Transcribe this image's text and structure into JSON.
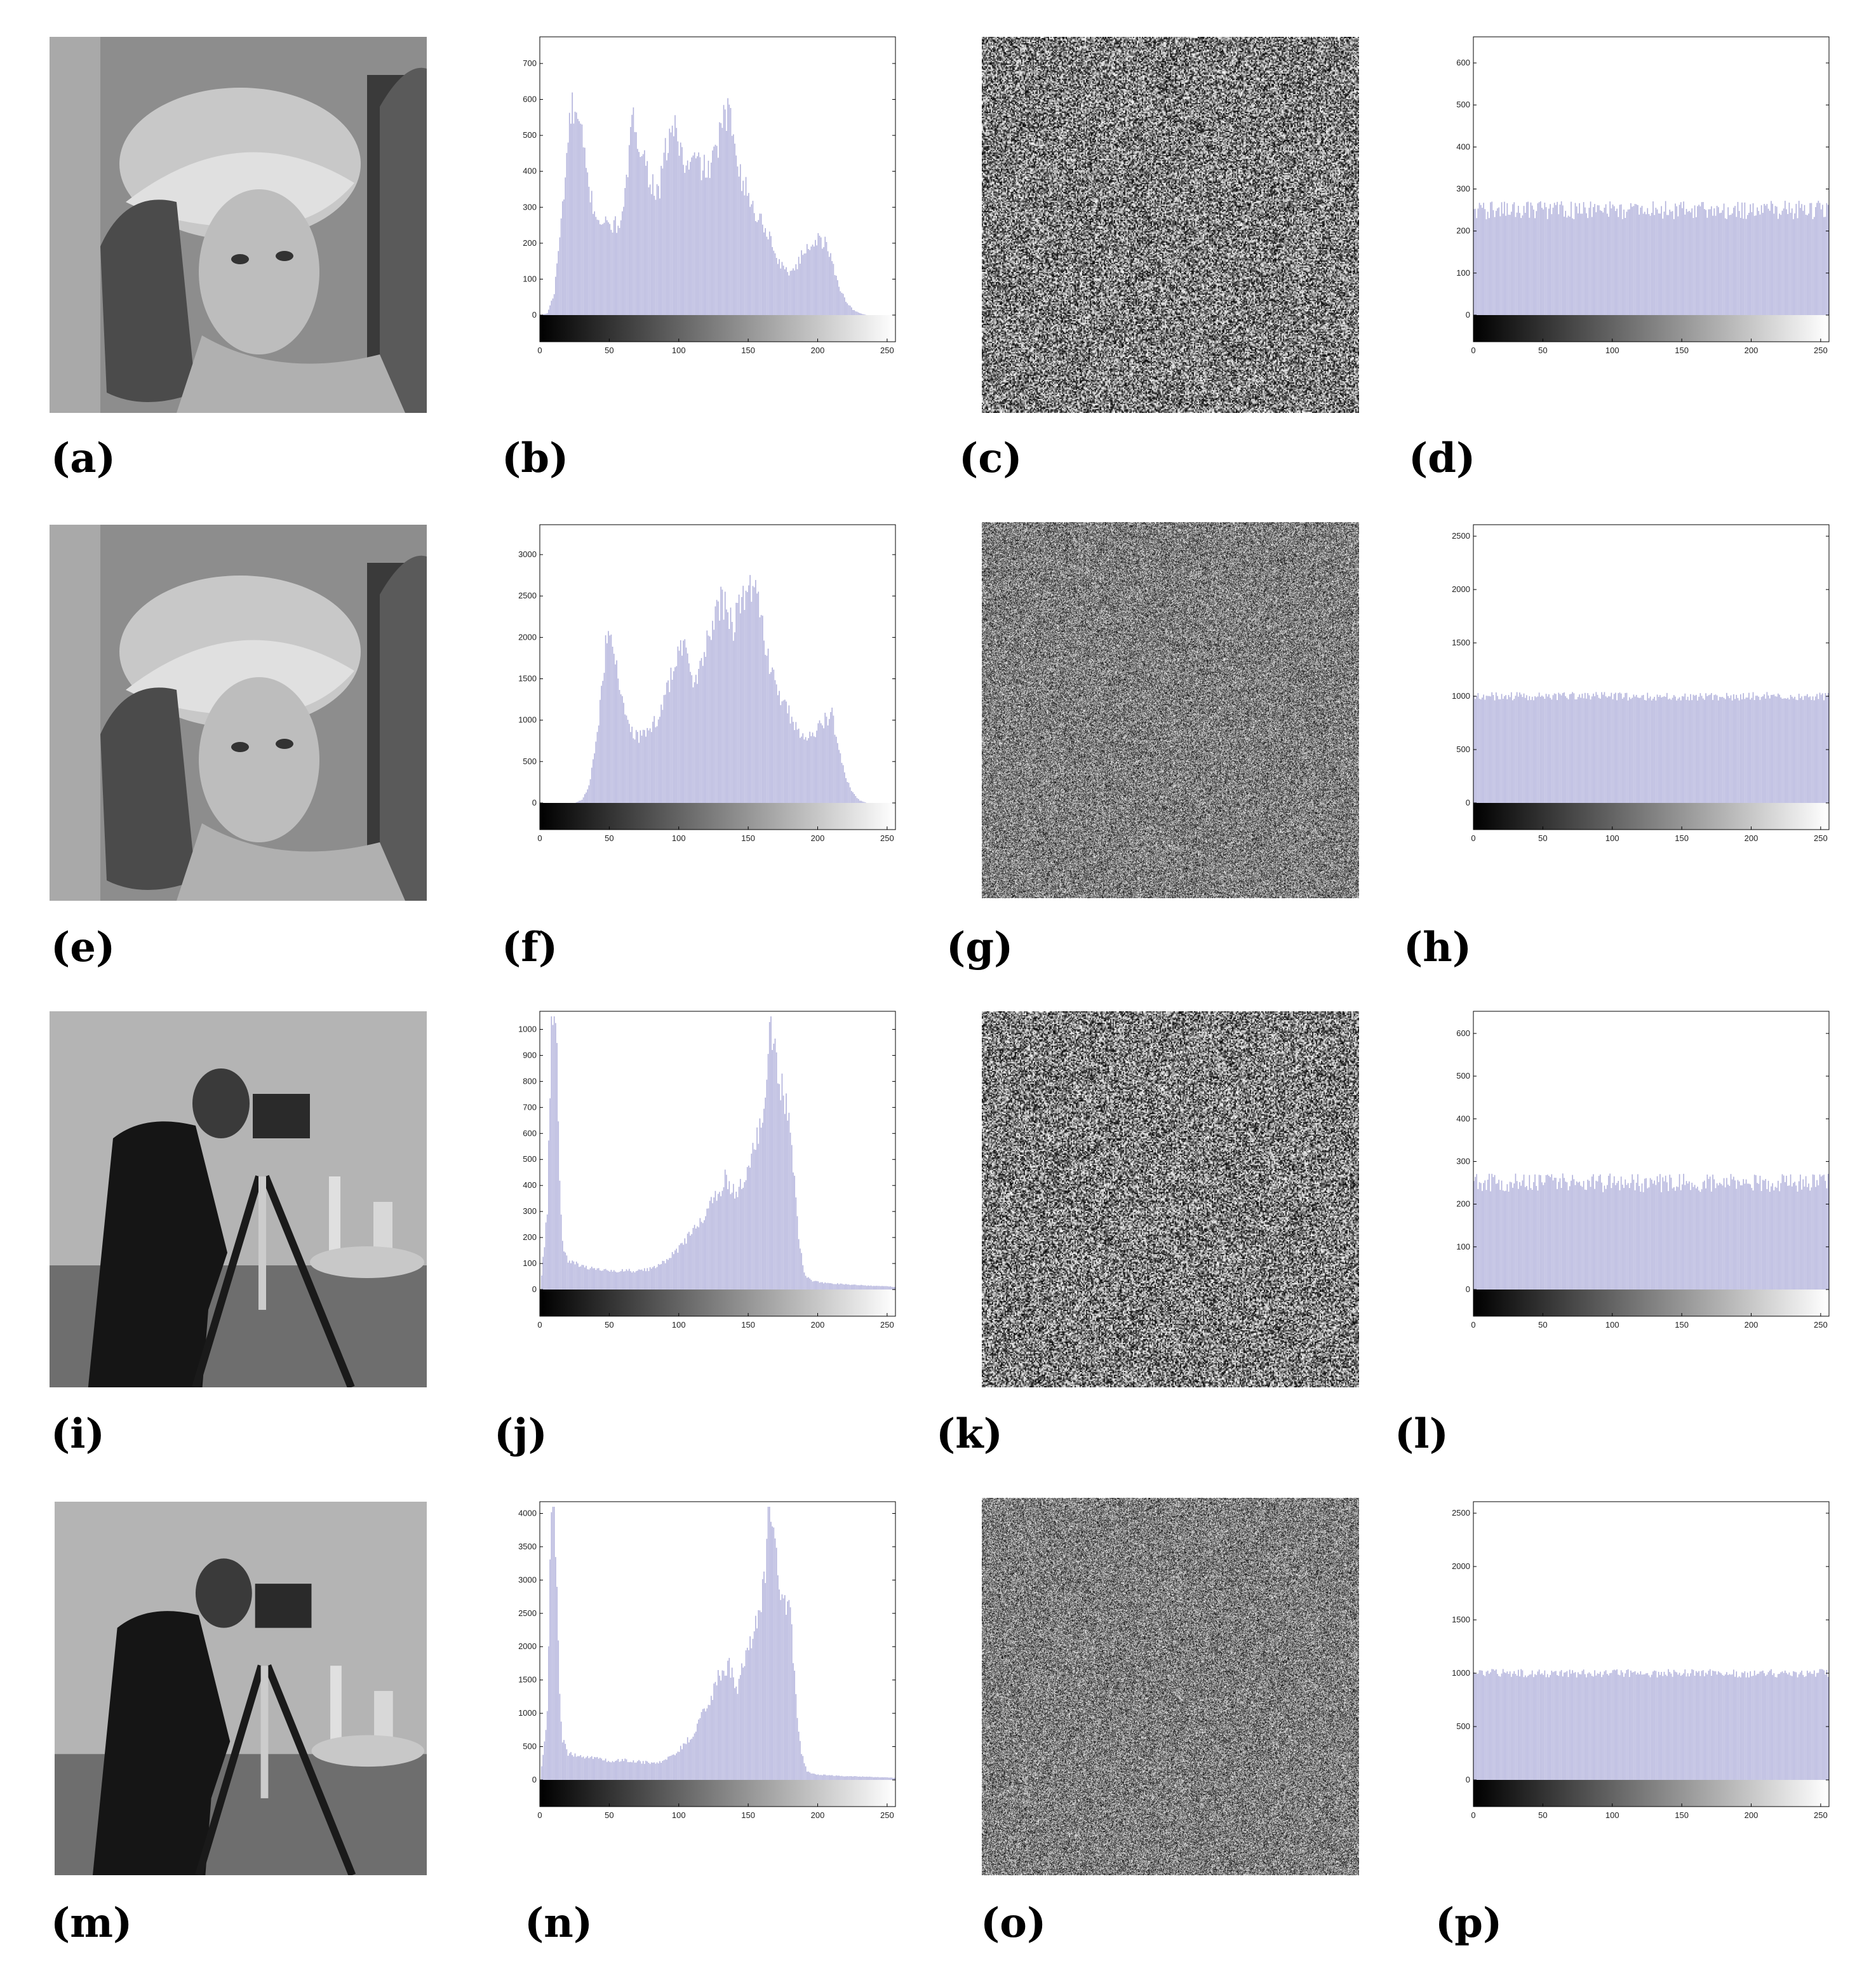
{
  "captions": [
    "(a)",
    "(b)",
    "(c)",
    "(d)",
    "(e)",
    "(f)",
    "(g)",
    "(h)",
    "(i)",
    "(j)",
    "(k)",
    "(l)",
    "(m)",
    "(n)",
    "(o)",
    "(p)"
  ],
  "colors": {
    "bar": "#b3b3dc",
    "axis": "#000000",
    "background": "#ffffff"
  },
  "photos": [
    {
      "panel": "a",
      "subject": "woman-with-hat"
    },
    {
      "panel": "e",
      "subject": "woman-with-hat"
    },
    {
      "panel": "i",
      "subject": "cameraman"
    },
    {
      "panel": "m",
      "subject": "cameraman"
    }
  ],
  "noise": [
    {
      "panel": "c",
      "grain": 2
    },
    {
      "panel": "g",
      "grain": 1
    },
    {
      "panel": "k",
      "grain": 2
    },
    {
      "panel": "o",
      "grain": 1
    }
  ],
  "chart_data": [
    {
      "panel": "b",
      "type": "bar",
      "xlim": [
        0,
        255
      ],
      "ylim": [
        0,
        760
      ],
      "xticks": [
        0,
        50,
        100,
        150,
        200,
        250
      ],
      "yticks": [
        0,
        100,
        200,
        300,
        400,
        500,
        600,
        700
      ],
      "profile": [
        [
          0,
          0
        ],
        [
          5,
          5
        ],
        [
          10,
          60
        ],
        [
          15,
          260
        ],
        [
          20,
          480
        ],
        [
          22,
          570
        ],
        [
          25,
          560
        ],
        [
          30,
          490
        ],
        [
          35,
          350
        ],
        [
          40,
          280
        ],
        [
          45,
          255
        ],
        [
          50,
          250
        ],
        [
          55,
          250
        ],
        [
          60,
          280
        ],
        [
          65,
          500
        ],
        [
          68,
          540
        ],
        [
          72,
          480
        ],
        [
          78,
          390
        ],
        [
          85,
          330
        ],
        [
          90,
          450
        ],
        [
          95,
          530
        ],
        [
          100,
          480
        ],
        [
          105,
          400
        ],
        [
          110,
          430
        ],
        [
          115,
          420
        ],
        [
          120,
          400
        ],
        [
          125,
          430
        ],
        [
          130,
          520
        ],
        [
          135,
          560
        ],
        [
          140,
          500
        ],
        [
          145,
          380
        ],
        [
          150,
          330
        ],
        [
          155,
          280
        ],
        [
          160,
          260
        ],
        [
          165,
          220
        ],
        [
          170,
          160
        ],
        [
          175,
          130
        ],
        [
          180,
          120
        ],
        [
          185,
          140
        ],
        [
          190,
          180
        ],
        [
          195,
          200
        ],
        [
          200,
          210
        ],
        [
          205,
          200
        ],
        [
          210,
          150
        ],
        [
          215,
          80
        ],
        [
          220,
          40
        ],
        [
          225,
          15
        ],
        [
          230,
          5
        ],
        [
          235,
          0
        ],
        [
          255,
          0
        ]
      ]
    },
    {
      "panel": "d",
      "type": "bar",
      "xlim": [
        0,
        255
      ],
      "ylim": [
        0,
        650
      ],
      "xticks": [
        0,
        50,
        100,
        150,
        200,
        250
      ],
      "yticks": [
        0,
        100,
        200,
        300,
        400,
        500,
        600
      ],
      "profile": [
        [
          0,
          250
        ],
        [
          255,
          250
        ]
      ],
      "jitter": 22
    },
    {
      "panel": "f",
      "type": "bar",
      "xlim": [
        0,
        255
      ],
      "ylim": [
        0,
        3300
      ],
      "xticks": [
        0,
        50,
        100,
        150,
        200,
        250
      ],
      "yticks": [
        0,
        500,
        1000,
        1500,
        2000,
        2500,
        3000
      ],
      "profile": [
        [
          0,
          0
        ],
        [
          25,
          0
        ],
        [
          30,
          40
        ],
        [
          35,
          200
        ],
        [
          40,
          700
        ],
        [
          45,
          1500
        ],
        [
          48,
          2050
        ],
        [
          52,
          2000
        ],
        [
          56,
          1600
        ],
        [
          60,
          1100
        ],
        [
          65,
          850
        ],
        [
          70,
          800
        ],
        [
          75,
          820
        ],
        [
          80,
          900
        ],
        [
          85,
          1050
        ],
        [
          90,
          1300
        ],
        [
          95,
          1600
        ],
        [
          100,
          1850
        ],
        [
          102,
          1900
        ],
        [
          106,
          1700
        ],
        [
          110,
          1500
        ],
        [
          115,
          1650
        ],
        [
          120,
          1900
        ],
        [
          125,
          2200
        ],
        [
          130,
          2450
        ],
        [
          134,
          2350
        ],
        [
          138,
          2100
        ],
        [
          142,
          2300
        ],
        [
          146,
          2450
        ],
        [
          150,
          2600
        ],
        [
          153,
          2720
        ],
        [
          156,
          2500
        ],
        [
          160,
          2100
        ],
        [
          165,
          1700
        ],
        [
          170,
          1400
        ],
        [
          175,
          1200
        ],
        [
          180,
          1050
        ],
        [
          185,
          900
        ],
        [
          190,
          750
        ],
        [
          195,
          800
        ],
        [
          200,
          900
        ],
        [
          205,
          1000
        ],
        [
          210,
          1050
        ],
        [
          212,
          900
        ],
        [
          216,
          600
        ],
        [
          220,
          300
        ],
        [
          225,
          120
        ],
        [
          230,
          30
        ],
        [
          235,
          0
        ],
        [
          255,
          0
        ]
      ]
    },
    {
      "panel": "h",
      "type": "bar",
      "xlim": [
        0,
        255
      ],
      "ylim": [
        0,
        2560
      ],
      "xticks": [
        0,
        50,
        100,
        150,
        200,
        250
      ],
      "yticks": [
        0,
        500,
        1000,
        1500,
        2000,
        2500
      ],
      "profile": [
        [
          0,
          1000
        ],
        [
          255,
          1000
        ]
      ],
      "jitter": 40
    },
    {
      "panel": "j",
      "type": "bar",
      "xlim": [
        0,
        255
      ],
      "ylim": [
        0,
        1050
      ],
      "xticks": [
        0,
        50,
        100,
        150,
        200,
        250
      ],
      "yticks": [
        0,
        100,
        200,
        300,
        400,
        500,
        600,
        700,
        800,
        900,
        1000
      ],
      "profile": [
        [
          0,
          0
        ],
        [
          5,
          300
        ],
        [
          8,
          1050
        ],
        [
          10,
          1050
        ],
        [
          12,
          900
        ],
        [
          14,
          400
        ],
        [
          16,
          180
        ],
        [
          20,
          110
        ],
        [
          30,
          90
        ],
        [
          40,
          80
        ],
        [
          50,
          70
        ],
        [
          60,
          75
        ],
        [
          70,
          70
        ],
        [
          80,
          80
        ],
        [
          90,
          110
        ],
        [
          100,
          160
        ],
        [
          110,
          230
        ],
        [
          120,
          300
        ],
        [
          128,
          380
        ],
        [
          133,
          420
        ],
        [
          138,
          400
        ],
        [
          142,
          360
        ],
        [
          146,
          420
        ],
        [
          150,
          480
        ],
        [
          155,
          560
        ],
        [
          158,
          600
        ],
        [
          162,
          700
        ],
        [
          165,
          1050
        ],
        [
          168,
          1000
        ],
        [
          171,
          800
        ],
        [
          173,
          780
        ],
        [
          176,
          720
        ],
        [
          180,
          600
        ],
        [
          183,
          400
        ],
        [
          186,
          200
        ],
        [
          190,
          60
        ],
        [
          195,
          35
        ],
        [
          205,
          25
        ],
        [
          220,
          20
        ],
        [
          235,
          15
        ],
        [
          250,
          12
        ],
        [
          255,
          10
        ]
      ]
    },
    {
      "panel": "l",
      "type": "bar",
      "xlim": [
        0,
        255
      ],
      "ylim": [
        0,
        640
      ],
      "xticks": [
        0,
        50,
        100,
        150,
        200,
        250
      ],
      "yticks": [
        0,
        100,
        200,
        300,
        400,
        500,
        600
      ],
      "profile": [
        [
          0,
          250
        ],
        [
          255,
          250
        ]
      ],
      "jitter": 22
    },
    {
      "panel": "n",
      "type": "bar",
      "xlim": [
        0,
        255
      ],
      "ylim": [
        0,
        4100
      ],
      "xticks": [
        0,
        50,
        100,
        150,
        200,
        250
      ],
      "yticks": [
        0,
        500,
        1000,
        1500,
        2000,
        2500,
        3000,
        3500,
        4000
      ],
      "profile": [
        [
          0,
          0
        ],
        [
          5,
          1000
        ],
        [
          8,
          4100
        ],
        [
          10,
          4100
        ],
        [
          12,
          3000
        ],
        [
          14,
          1200
        ],
        [
          16,
          600
        ],
        [
          20,
          400
        ],
        [
          30,
          360
        ],
        [
          40,
          330
        ],
        [
          50,
          280
        ],
        [
          60,
          300
        ],
        [
          70,
          280
        ],
        [
          80,
          250
        ],
        [
          90,
          300
        ],
        [
          100,
          450
        ],
        [
          110,
          700
        ],
        [
          120,
          1100
        ],
        [
          128,
          1500
        ],
        [
          133,
          1700
        ],
        [
          138,
          1650
        ],
        [
          142,
          1400
        ],
        [
          146,
          1700
        ],
        [
          150,
          2000
        ],
        [
          155,
          2300
        ],
        [
          158,
          2500
        ],
        [
          162,
          3000
        ],
        [
          164,
          4100
        ],
        [
          167,
          3900
        ],
        [
          171,
          3000
        ],
        [
          174,
          2800
        ],
        [
          178,
          2700
        ],
        [
          181,
          2200
        ],
        [
          184,
          1200
        ],
        [
          188,
          400
        ],
        [
          192,
          120
        ],
        [
          200,
          80
        ],
        [
          215,
          60
        ],
        [
          230,
          50
        ],
        [
          245,
          40
        ],
        [
          255,
          30
        ]
      ]
    },
    {
      "panel": "p",
      "type": "bar",
      "xlim": [
        0,
        255
      ],
      "ylim": [
        0,
        2560
      ],
      "xticks": [
        0,
        50,
        100,
        150,
        200,
        250
      ],
      "yticks": [
        0,
        500,
        1000,
        1500,
        2000,
        2500
      ],
      "profile": [
        [
          0,
          1000
        ],
        [
          255,
          1000
        ]
      ],
      "jitter": 40
    }
  ]
}
